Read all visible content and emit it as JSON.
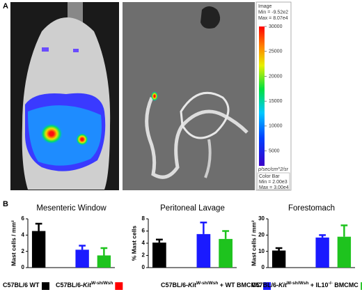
{
  "panel_labels": [
    "A",
    "B"
  ],
  "colorbar": {
    "header": [
      "Image",
      "Min = -9.52e2",
      "Max = 8.07e4"
    ],
    "lim": [
      2000,
      30000
    ],
    "ticks": [
      5000,
      10000,
      15000,
      20000,
      25000,
      30000
    ],
    "unit": "p/sec/cm^2/sr",
    "footer": [
      "Color Bar",
      "Min = 2.00e3",
      "Max = 3.00e4"
    ]
  },
  "chart_data": [
    {
      "type": "bar",
      "title": "Mesenteric Window",
      "ylabel": "Mast cells / mm²",
      "ylim": [
        0,
        6
      ],
      "yticks": [
        0,
        2,
        4,
        6
      ],
      "values": [
        4.5,
        0,
        2.2,
        1.5
      ],
      "errors": [
        0.9,
        null,
        0.5,
        0.9
      ],
      "colors": [
        "#000000",
        "#ff0000",
        "#1a1aff",
        "#1ec31e"
      ]
    },
    {
      "type": "bar",
      "title": "Peritoneal Lavage",
      "ylabel": "% Mast cells",
      "ylim": [
        0,
        8
      ],
      "yticks": [
        0,
        2,
        4,
        6,
        8
      ],
      "values": [
        4.1,
        0,
        5.5,
        4.7
      ],
      "errors": [
        0.5,
        null,
        1.9,
        1.3
      ],
      "colors": [
        "#000000",
        "#ff0000",
        "#1a1aff",
        "#1ec31e"
      ]
    },
    {
      "type": "bar",
      "title": "Forestomach",
      "ylabel": "Mast cells / mm²",
      "ylim": [
        0,
        30
      ],
      "yticks": [
        0,
        10,
        20,
        30
      ],
      "values": [
        10.5,
        0,
        18.5,
        19
      ],
      "errors": [
        1.5,
        null,
        1.5,
        7
      ],
      "colors": [
        "#000000",
        "#ff0000",
        "#1a1aff",
        "#1ec31e"
      ]
    }
  ],
  "legend": [
    {
      "color": "#000000",
      "parts": [
        {
          "text": "C57BL/6 WT"
        }
      ]
    },
    {
      "color": "#ff0000",
      "parts": [
        {
          "text": "C57BL/6-"
        },
        {
          "italic": "Kit"
        },
        {
          "sup": "W-sh/Wsh"
        }
      ]
    },
    {
      "color": "#1a1aff",
      "parts": [
        {
          "text": "C57BL/6-"
        },
        {
          "italic": "Kit"
        },
        {
          "sup": "W-sh/Wsh"
        },
        {
          "text": " + WT BMCMC"
        }
      ]
    },
    {
      "color": "#1ec31e",
      "parts": [
        {
          "text": "C57BL/6-"
        },
        {
          "italic": "Kit"
        },
        {
          "sup": "W-sh/Wsh"
        },
        {
          "text": " + IL10"
        },
        {
          "sup": "-/-"
        },
        {
          "text": " BMCMC"
        }
      ]
    }
  ]
}
